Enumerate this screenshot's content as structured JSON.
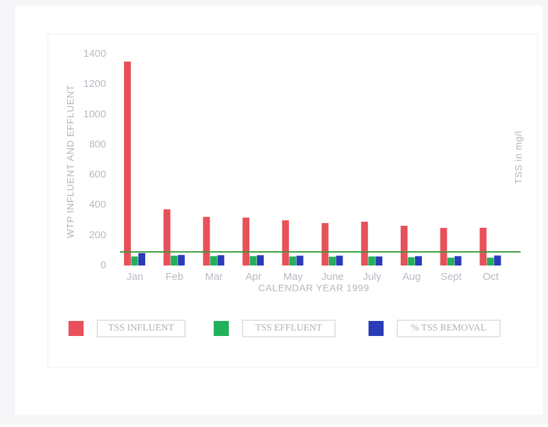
{
  "chart_data": {
    "type": "bar",
    "y_label": "WTP INFLUENT AND EFFLUENT",
    "y2_label": "TSS in mg/l",
    "x_label": "CALENDAR YEAR 1999",
    "categories": [
      "Jan",
      "Feb",
      "Mar",
      "Apr",
      "May",
      "June",
      "July",
      "Aug",
      "Sept",
      "Oct"
    ],
    "series": [
      {
        "name": "TSS INFLUENT",
        "color": "#e8505a",
        "values": [
          1350,
          372,
          322,
          317,
          299,
          281,
          290,
          263,
          249,
          250
        ]
      },
      {
        "name": "TSS EFFLUENT",
        "color": "#22b05a",
        "values": [
          60,
          65,
          62,
          62,
          60,
          58,
          60,
          55,
          52,
          52
        ]
      },
      {
        "name": "% TSS REMOVAL",
        "color": "#2a3cb8",
        "values": [
          82,
          70,
          68,
          68,
          65,
          65,
          60,
          62,
          62,
          66
        ]
      }
    ],
    "reference_line": {
      "value": 90,
      "color": "#3a9a3a"
    },
    "ylim": [
      0,
      1400
    ],
    "yticks": [
      0,
      200,
      400,
      600,
      800,
      1000,
      1200,
      1400
    ],
    "grid": false
  }
}
